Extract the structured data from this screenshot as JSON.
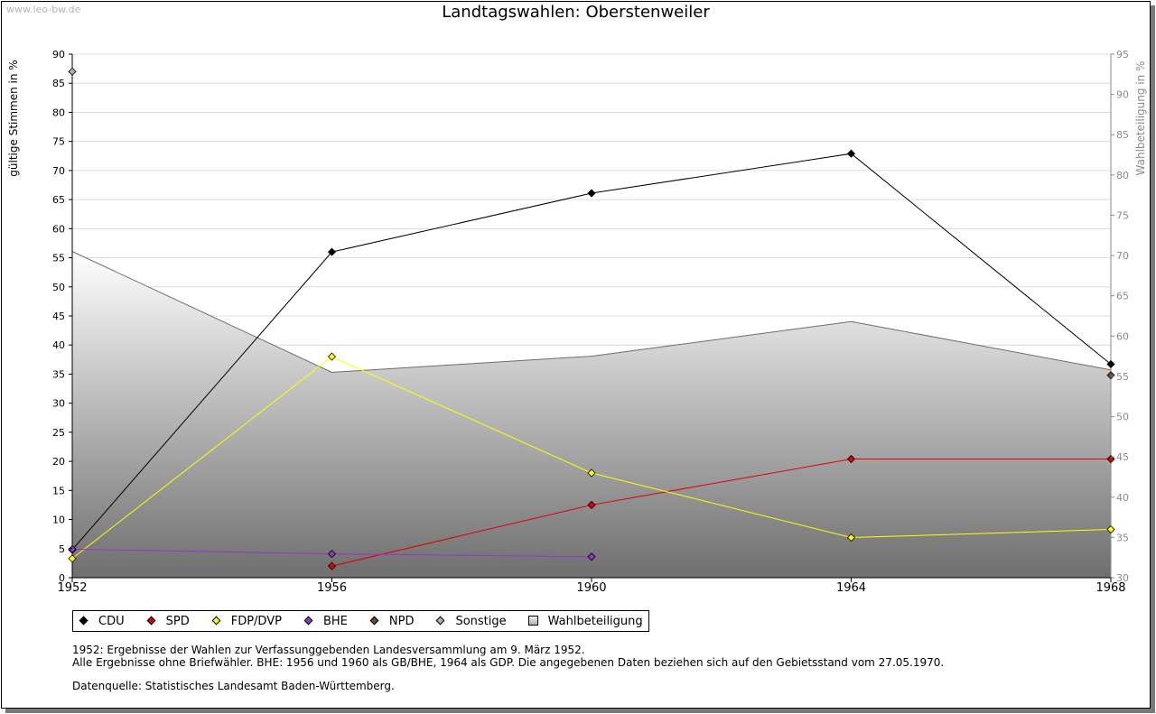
{
  "watermark": "www.leo-bw.de",
  "chart_data": {
    "type": "line",
    "title": "Landtagswahlen: Oberstenweiler",
    "ylabel": "gültige Stimmen in %",
    "y2label": "Wahlbeteiligung in %",
    "xlabel": "",
    "x": [
      1952,
      1956,
      1960,
      1964,
      1968
    ],
    "ylim": [
      0,
      90
    ],
    "yticks": [
      0,
      5,
      10,
      15,
      20,
      25,
      30,
      35,
      40,
      45,
      50,
      55,
      60,
      65,
      70,
      75,
      80,
      85,
      90
    ],
    "y2lim": [
      30,
      95
    ],
    "y2ticks": [
      30,
      35,
      40,
      45,
      50,
      55,
      60,
      65,
      70,
      75,
      80,
      85,
      90,
      95
    ],
    "grid": true,
    "legend_position": "bottom",
    "area": {
      "name": "Wahlbeteiligung",
      "axis": "right",
      "x": [
        1952,
        1956,
        1960,
        1964,
        1968
      ],
      "values": [
        70.5,
        55.5,
        57.5,
        61.8,
        55.8
      ]
    },
    "series": [
      {
        "name": "CDU",
        "color": "#000000",
        "x": [
          1952,
          1956,
          1960,
          1964,
          1968
        ],
        "values": [
          4.8,
          56.0,
          66.1,
          72.9,
          36.7
        ]
      },
      {
        "name": "SPD",
        "color": "#e00000",
        "x": [
          1956,
          1960,
          1964,
          1968
        ],
        "values": [
          2.0,
          12.5,
          20.4,
          20.4
        ]
      },
      {
        "name": "FDP/DVP",
        "color": "#ffff00",
        "x": [
          1952,
          1956,
          1960,
          1964,
          1968
        ],
        "values": [
          3.3,
          38.0,
          18.0,
          6.9,
          8.3
        ]
      },
      {
        "name": "BHE",
        "color": "#9933cc",
        "x": [
          1952,
          1956,
          1960
        ],
        "values": [
          4.9,
          4.1,
          3.6
        ]
      },
      {
        "name": "NPD",
        "color": "#6b4a2f",
        "x": [
          1968
        ],
        "values": [
          34.8
        ]
      },
      {
        "name": "Sonstige",
        "color": "#b0b0b0",
        "x": [
          1952
        ],
        "values": [
          87.0
        ]
      }
    ]
  },
  "legend": [
    {
      "label": "CDU",
      "color": "#000000",
      "kind": "diamond"
    },
    {
      "label": "SPD",
      "color": "#e00000",
      "kind": "diamond"
    },
    {
      "label": "FDP/DVP",
      "color": "#ffff00",
      "kind": "diamond"
    },
    {
      "label": "BHE",
      "color": "#9933cc",
      "kind": "diamond"
    },
    {
      "label": "NPD",
      "color": "#6b4a2f",
      "kind": "diamond"
    },
    {
      "label": "Sonstige",
      "color": "#b0b0b0",
      "kind": "diamond"
    },
    {
      "label": "Wahlbeteiligung",
      "color": "#c8c8c8",
      "kind": "square"
    }
  ],
  "notes": {
    "line1": "1952: Ergebnisse der Wahlen zur Verfassunggebenden Landesversammlung am 9. März 1952.",
    "line2": "Alle Ergebnisse ohne Briefwähler. BHE: 1956 und 1960 als GB/BHE, 1964 als GDP. Die angegebenen Daten beziehen sich auf den Gebietsstand vom 27.05.1970.",
    "source": "Datenquelle: Statistisches Landesamt Baden-Württemberg."
  }
}
